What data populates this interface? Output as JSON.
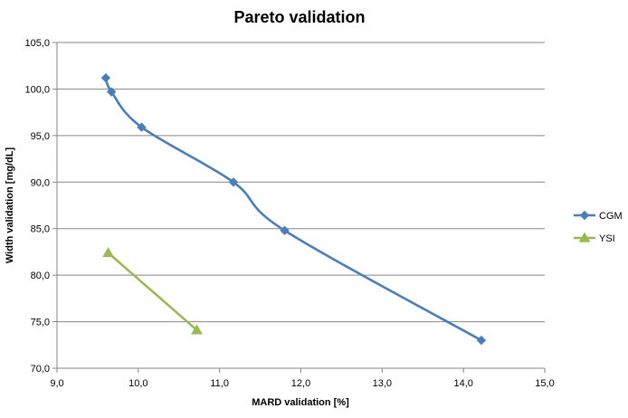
{
  "chart_data": {
    "type": "line",
    "title": "Pareto validation",
    "xlabel": "MARD validation [%]",
    "ylabel": "Width validation  [mg/dL]",
    "xlim": [
      9.0,
      15.0
    ],
    "ylim": [
      70.0,
      105.0
    ],
    "x_ticks": [
      "9,0",
      "10,0",
      "11,0",
      "12,0",
      "13,0",
      "14,0",
      "15,0"
    ],
    "y_ticks": [
      "70,0",
      "75,0",
      "80,0",
      "85,0",
      "90,0",
      "95,0",
      "100,0",
      "105,0"
    ],
    "grid": "horizontal",
    "legend_position": "right",
    "series": [
      {
        "name": "CGM",
        "color": "#4a7ebb",
        "marker": "diamond",
        "smooth": true,
        "points": [
          [
            9.6,
            101.2
          ],
          [
            9.67,
            99.7
          ],
          [
            10.04,
            95.9
          ],
          [
            11.17,
            90.0
          ],
          [
            11.8,
            84.8
          ],
          [
            14.22,
            73.0
          ]
        ]
      },
      {
        "name": "YSI",
        "color": "#98b954",
        "marker": "triangle",
        "smooth": false,
        "points": [
          [
            9.63,
            82.4
          ],
          [
            10.72,
            74.1
          ]
        ]
      }
    ]
  }
}
